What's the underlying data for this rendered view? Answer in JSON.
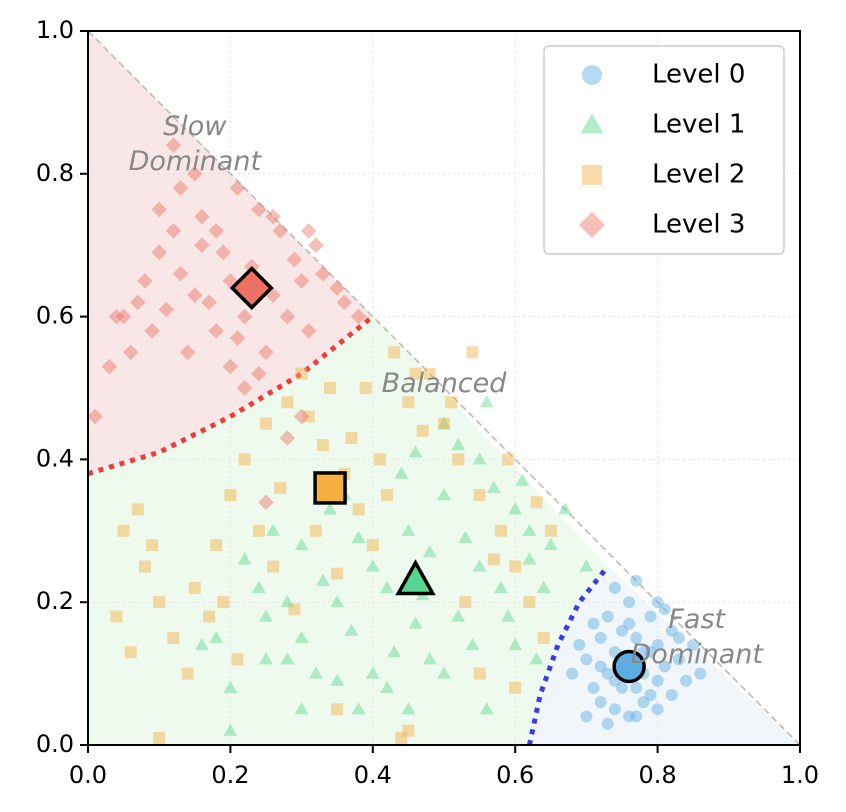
{
  "chart_data": {
    "type": "scatter",
    "title": "",
    "xlabel": "",
    "ylabel": "",
    "xlim": [
      0.0,
      1.0
    ],
    "ylim": [
      0.0,
      1.0
    ],
    "x_ticks": [
      "0.0",
      "0.2",
      "0.4",
      "0.6",
      "0.8",
      "1.0"
    ],
    "y_ticks": [
      "0.0",
      "0.2",
      "0.4",
      "0.6",
      "0.8",
      "1.0"
    ],
    "grid": true,
    "legend_position": "top-right",
    "regions": [
      {
        "name": "Slow Dominant",
        "label_lines": [
          "Slow",
          "Dominant"
        ],
        "color": "#f9e6e6",
        "label_at": [
          0.15,
          0.84
        ]
      },
      {
        "name": "Balanced",
        "label_lines": [
          "Balanced"
        ],
        "color": "#eefaee",
        "label_at": [
          0.5,
          0.505
        ]
      },
      {
        "name": "Fast Dominant",
        "label_lines": [
          "Fast",
          "Dominant"
        ],
        "color": "#f0f6f9",
        "label_at": [
          0.855,
          0.15
        ]
      }
    ],
    "boundaries": [
      {
        "name": "slow-boundary",
        "color": "#ee3b3b",
        "style": "dotted",
        "points": [
          [
            0.0,
            0.38
          ],
          [
            0.1,
            0.41
          ],
          [
            0.2,
            0.46
          ],
          [
            0.3,
            0.52
          ],
          [
            0.4,
            0.6
          ]
        ]
      },
      {
        "name": "fast-boundary",
        "color": "#3b3bee",
        "style": "dotted",
        "points": [
          [
            0.62,
            0.0
          ],
          [
            0.635,
            0.07
          ],
          [
            0.66,
            0.14
          ],
          [
            0.69,
            0.2
          ],
          [
            0.73,
            0.25
          ]
        ]
      },
      {
        "name": "simplex-edge",
        "color": "#bbbbbb",
        "style": "dashed",
        "points": [
          [
            0.0,
            1.0
          ],
          [
            1.0,
            0.0
          ]
        ]
      }
    ],
    "series": [
      {
        "name": "Level 0",
        "marker": "circle",
        "color": "#5dade2",
        "centroid": [
          0.76,
          0.11
        ],
        "points": [
          [
            0.72,
            0.15
          ],
          [
            0.74,
            0.13
          ],
          [
            0.76,
            0.12
          ],
          [
            0.78,
            0.1
          ],
          [
            0.8,
            0.09
          ],
          [
            0.75,
            0.08
          ],
          [
            0.73,
            0.1
          ],
          [
            0.77,
            0.15
          ],
          [
            0.79,
            0.13
          ],
          [
            0.81,
            0.11
          ],
          [
            0.83,
            0.12
          ],
          [
            0.7,
            0.12
          ],
          [
            0.71,
            0.08
          ],
          [
            0.74,
            0.05
          ],
          [
            0.76,
            0.04
          ],
          [
            0.78,
            0.06
          ],
          [
            0.8,
            0.05
          ],
          [
            0.82,
            0.07
          ],
          [
            0.84,
            0.09
          ],
          [
            0.85,
            0.14
          ],
          [
            0.82,
            0.16
          ],
          [
            0.79,
            0.18
          ],
          [
            0.76,
            0.2
          ],
          [
            0.74,
            0.22
          ],
          [
            0.77,
            0.23
          ],
          [
            0.8,
            0.2
          ],
          [
            0.73,
            0.18
          ],
          [
            0.75,
            0.16
          ],
          [
            0.72,
            0.06
          ],
          [
            0.7,
            0.04
          ],
          [
            0.68,
            0.1
          ],
          [
            0.69,
            0.14
          ],
          [
            0.81,
            0.19
          ],
          [
            0.83,
            0.15
          ],
          [
            0.86,
            0.1
          ],
          [
            0.77,
            0.08
          ],
          [
            0.75,
            0.1
          ],
          [
            0.78,
            0.13
          ],
          [
            0.79,
            0.07
          ],
          [
            0.73,
            0.03
          ],
          [
            0.71,
            0.17
          ],
          [
            0.76,
            0.17
          ],
          [
            0.74,
            0.09
          ],
          [
            0.77,
            0.04
          ],
          [
            0.8,
            0.14
          ],
          [
            0.72,
            0.11
          ]
        ]
      },
      {
        "name": "Level 1",
        "marker": "triangle",
        "color": "#58d68d",
        "centroid": [
          0.46,
          0.23
        ],
        "points": [
          [
            0.2,
            0.08
          ],
          [
            0.25,
            0.12
          ],
          [
            0.3,
            0.15
          ],
          [
            0.35,
            0.2
          ],
          [
            0.4,
            0.25
          ],
          [
            0.45,
            0.3
          ],
          [
            0.5,
            0.35
          ],
          [
            0.55,
            0.4
          ],
          [
            0.6,
            0.33
          ],
          [
            0.65,
            0.28
          ],
          [
            0.7,
            0.25
          ],
          [
            0.62,
            0.3
          ],
          [
            0.58,
            0.22
          ],
          [
            0.52,
            0.18
          ],
          [
            0.48,
            0.12
          ],
          [
            0.42,
            0.08
          ],
          [
            0.38,
            0.05
          ],
          [
            0.32,
            0.1
          ],
          [
            0.28,
            0.2
          ],
          [
            0.22,
            0.26
          ],
          [
            0.26,
            0.3
          ],
          [
            0.34,
            0.33
          ],
          [
            0.44,
            0.38
          ],
          [
            0.52,
            0.42
          ],
          [
            0.56,
            0.48
          ],
          [
            0.5,
            0.45
          ],
          [
            0.46,
            0.41
          ],
          [
            0.36,
            0.35
          ],
          [
            0.3,
            0.28
          ],
          [
            0.24,
            0.22
          ],
          [
            0.18,
            0.15
          ],
          [
            0.16,
            0.14
          ],
          [
            0.2,
            0.02
          ],
          [
            0.35,
            0.09
          ],
          [
            0.5,
            0.1
          ],
          [
            0.56,
            0.05
          ],
          [
            0.6,
            0.14
          ],
          [
            0.64,
            0.22
          ],
          [
            0.67,
            0.33
          ],
          [
            0.61,
            0.37
          ],
          [
            0.53,
            0.29
          ],
          [
            0.47,
            0.21
          ],
          [
            0.43,
            0.13
          ],
          [
            0.4,
            0.1
          ],
          [
            0.3,
            0.05
          ],
          [
            0.25,
            0.18
          ],
          [
            0.33,
            0.23
          ],
          [
            0.38,
            0.29
          ],
          [
            0.55,
            0.25
          ],
          [
            0.59,
            0.18
          ],
          [
            0.63,
            0.12
          ],
          [
            0.45,
            0.05
          ],
          [
            0.37,
            0.16
          ],
          [
            0.28,
            0.12
          ],
          [
            0.42,
            0.22
          ],
          [
            0.48,
            0.27
          ],
          [
            0.57,
            0.36
          ],
          [
            0.62,
            0.26
          ],
          [
            0.54,
            0.14
          ],
          [
            0.46,
            0.17
          ]
        ]
      },
      {
        "name": "Level 2",
        "marker": "square",
        "color": "#f5b041",
        "centroid": [
          0.34,
          0.36
        ],
        "points": [
          [
            0.05,
            0.3
          ],
          [
            0.08,
            0.25
          ],
          [
            0.1,
            0.2
          ],
          [
            0.12,
            0.15
          ],
          [
            0.15,
            0.22
          ],
          [
            0.18,
            0.28
          ],
          [
            0.2,
            0.35
          ],
          [
            0.22,
            0.4
          ],
          [
            0.25,
            0.45
          ],
          [
            0.28,
            0.48
          ],
          [
            0.3,
            0.52
          ],
          [
            0.33,
            0.42
          ],
          [
            0.36,
            0.38
          ],
          [
            0.38,
            0.33
          ],
          [
            0.4,
            0.28
          ],
          [
            0.42,
            0.35
          ],
          [
            0.45,
            0.48
          ],
          [
            0.48,
            0.52
          ],
          [
            0.5,
            0.45
          ],
          [
            0.52,
            0.4
          ],
          [
            0.55,
            0.35
          ],
          [
            0.58,
            0.3
          ],
          [
            0.6,
            0.25
          ],
          [
            0.62,
            0.2
          ],
          [
            0.64,
            0.15
          ],
          [
            0.6,
            0.08
          ],
          [
            0.55,
            0.1
          ],
          [
            0.45,
            0.02
          ],
          [
            0.35,
            0.05
          ],
          [
            0.1,
            0.01
          ],
          [
            0.04,
            0.18
          ],
          [
            0.06,
            0.13
          ],
          [
            0.09,
            0.28
          ],
          [
            0.14,
            0.1
          ],
          [
            0.17,
            0.18
          ],
          [
            0.24,
            0.3
          ],
          [
            0.27,
            0.36
          ],
          [
            0.31,
            0.46
          ],
          [
            0.34,
            0.5
          ],
          [
            0.37,
            0.43
          ],
          [
            0.39,
            0.5
          ],
          [
            0.43,
            0.55
          ],
          [
            0.46,
            0.52
          ],
          [
            0.51,
            0.48
          ],
          [
            0.54,
            0.55
          ],
          [
            0.59,
            0.4
          ],
          [
            0.63,
            0.34
          ],
          [
            0.65,
            0.3
          ],
          [
            0.57,
            0.26
          ],
          [
            0.53,
            0.2
          ],
          [
            0.21,
            0.12
          ],
          [
            0.26,
            0.25
          ],
          [
            0.32,
            0.3
          ],
          [
            0.41,
            0.4
          ],
          [
            0.47,
            0.44
          ],
          [
            0.29,
            0.19
          ],
          [
            0.35,
            0.24
          ],
          [
            0.44,
            0.01
          ],
          [
            0.07,
            0.33
          ],
          [
            0.19,
            0.2
          ]
        ]
      },
      {
        "name": "Level 3",
        "marker": "diamond",
        "color": "#ec7063",
        "centroid": [
          0.23,
          0.64
        ],
        "points": [
          [
            0.01,
            0.46
          ],
          [
            0.03,
            0.53
          ],
          [
            0.05,
            0.6
          ],
          [
            0.08,
            0.65
          ],
          [
            0.1,
            0.75
          ],
          [
            0.12,
            0.84
          ],
          [
            0.15,
            0.8
          ],
          [
            0.18,
            0.72
          ],
          [
            0.2,
            0.65
          ],
          [
            0.22,
            0.6
          ],
          [
            0.25,
            0.55
          ],
          [
            0.28,
            0.6
          ],
          [
            0.3,
            0.65
          ],
          [
            0.32,
            0.7
          ],
          [
            0.35,
            0.64
          ],
          [
            0.38,
            0.6
          ],
          [
            0.27,
            0.72
          ],
          [
            0.24,
            0.75
          ],
          [
            0.21,
            0.78
          ],
          [
            0.16,
            0.7
          ],
          [
            0.13,
            0.66
          ],
          [
            0.11,
            0.61
          ],
          [
            0.09,
            0.58
          ],
          [
            0.06,
            0.55
          ],
          [
            0.04,
            0.6
          ],
          [
            0.14,
            0.55
          ],
          [
            0.17,
            0.62
          ],
          [
            0.19,
            0.69
          ],
          [
            0.23,
            0.67
          ],
          [
            0.26,
            0.63
          ],
          [
            0.29,
            0.68
          ],
          [
            0.31,
            0.58
          ],
          [
            0.33,
            0.66
          ],
          [
            0.36,
            0.62
          ],
          [
            0.24,
            0.52
          ],
          [
            0.21,
            0.57
          ],
          [
            0.18,
            0.58
          ],
          [
            0.15,
            0.63
          ],
          [
            0.12,
            0.72
          ],
          [
            0.1,
            0.69
          ],
          [
            0.07,
            0.62
          ],
          [
            0.3,
            0.46
          ],
          [
            0.28,
            0.43
          ],
          [
            0.25,
            0.34
          ],
          [
            0.22,
            0.5
          ],
          [
            0.26,
            0.74
          ],
          [
            0.31,
            0.72
          ],
          [
            0.2,
            0.53
          ],
          [
            0.16,
            0.74
          ],
          [
            0.13,
            0.78
          ]
        ]
      }
    ]
  }
}
